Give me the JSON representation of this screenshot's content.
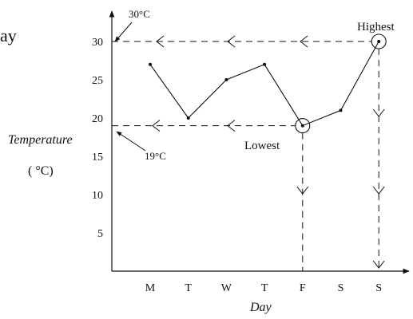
{
  "chart_data": {
    "type": "line",
    "categories": [
      "M",
      "T",
      "W",
      "T",
      "F",
      "S",
      "S"
    ],
    "values": [
      27,
      20,
      25,
      27,
      19,
      21,
      30
    ],
    "xlabel": "Day",
    "ylabel": "Temperature",
    "yunit": "( °C)",
    "yticks": [
      5,
      10,
      15,
      20,
      25,
      30
    ],
    "ylim": [
      0,
      35
    ],
    "grid": false,
    "annotations": {
      "highest": {
        "text": "Highest",
        "value": 30,
        "callout": "30°C",
        "category_index": 6
      },
      "lowest": {
        "text": "Lowest",
        "value": 19,
        "callout": "19°C",
        "category_index": 4
      }
    },
    "partial_title": "ay"
  },
  "colors": {
    "ink": "#111111",
    "background": "#ffffff"
  }
}
